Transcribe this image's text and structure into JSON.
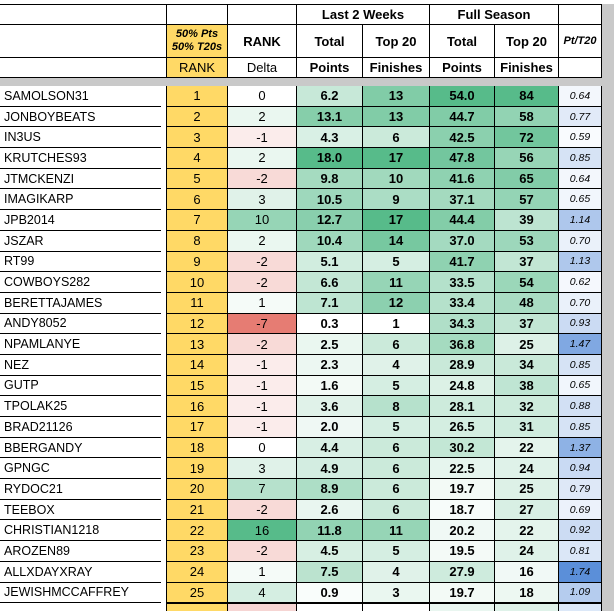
{
  "sheet": {
    "header": {
      "last2weeks": "Last 2 Weeks",
      "fullseason": "Full Season",
      "rank_formula_line1": "50% Pts",
      "rank_formula_line2": "50% T20s",
      "rank_label": "RANK",
      "delta_label_line1": "RANK",
      "delta_label_line2": "Delta",
      "total": "Total",
      "top20": "Top 20",
      "points": "Points",
      "finishes": "Finishes",
      "pt_per_t20": "Pt/T20"
    },
    "rows": [
      {
        "name": "SAMOLSON31",
        "rank": "1",
        "delta": "0",
        "l2w_points": "6.2",
        "l2w_top20": "13",
        "fs_points": "54.0",
        "fs_top20": "84",
        "pt_t20": "0.64"
      },
      {
        "name": "JONBOYBEATS",
        "rank": "2",
        "delta": "2",
        "l2w_points": "13.1",
        "l2w_top20": "13",
        "fs_points": "44.7",
        "fs_top20": "58",
        "pt_t20": "0.77"
      },
      {
        "name": "IN3US",
        "rank": "3",
        "delta": "-1",
        "l2w_points": "4.3",
        "l2w_top20": "6",
        "fs_points": "42.5",
        "fs_top20": "72",
        "pt_t20": "0.59"
      },
      {
        "name": "KRUTCHES93",
        "rank": "4",
        "delta": "2",
        "l2w_points": "18.0",
        "l2w_top20": "17",
        "fs_points": "47.8",
        "fs_top20": "56",
        "pt_t20": "0.85"
      },
      {
        "name": "JTMCKENZI",
        "rank": "5",
        "delta": "-2",
        "l2w_points": "9.8",
        "l2w_top20": "10",
        "fs_points": "41.6",
        "fs_top20": "65",
        "pt_t20": "0.64"
      },
      {
        "name": "IMAGIKARP",
        "rank": "6",
        "delta": "3",
        "l2w_points": "10.5",
        "l2w_top20": "9",
        "fs_points": "37.1",
        "fs_top20": "57",
        "pt_t20": "0.65"
      },
      {
        "name": "JPB2014",
        "rank": "7",
        "delta": "10",
        "l2w_points": "12.7",
        "l2w_top20": "17",
        "fs_points": "44.4",
        "fs_top20": "39",
        "pt_t20": "1.14"
      },
      {
        "name": "JSZAR",
        "rank": "8",
        "delta": "2",
        "l2w_points": "10.4",
        "l2w_top20": "14",
        "fs_points": "37.0",
        "fs_top20": "53",
        "pt_t20": "0.70"
      },
      {
        "name": "RT99",
        "rank": "9",
        "delta": "-2",
        "l2w_points": "5.1",
        "l2w_top20": "5",
        "fs_points": "41.7",
        "fs_top20": "37",
        "pt_t20": "1.13"
      },
      {
        "name": "COWBOYS282",
        "rank": "10",
        "delta": "-2",
        "l2w_points": "6.6",
        "l2w_top20": "11",
        "fs_points": "33.5",
        "fs_top20": "54",
        "pt_t20": "0.62"
      },
      {
        "name": "BERETTAJAMES",
        "rank": "11",
        "delta": "1",
        "l2w_points": "7.1",
        "l2w_top20": "12",
        "fs_points": "33.4",
        "fs_top20": "48",
        "pt_t20": "0.70"
      },
      {
        "name": "ANDY8052",
        "rank": "12",
        "delta": "-7",
        "l2w_points": "0.3",
        "l2w_top20": "1",
        "fs_points": "34.3",
        "fs_top20": "37",
        "pt_t20": "0.93"
      },
      {
        "name": "NPAMLANYE",
        "rank": "13",
        "delta": "-2",
        "l2w_points": "2.5",
        "l2w_top20": "6",
        "fs_points": "36.8",
        "fs_top20": "25",
        "pt_t20": "1.47"
      },
      {
        "name": "NEZ",
        "rank": "14",
        "delta": "-1",
        "l2w_points": "2.3",
        "l2w_top20": "4",
        "fs_points": "28.9",
        "fs_top20": "34",
        "pt_t20": "0.85"
      },
      {
        "name": "GUTP",
        "rank": "15",
        "delta": "-1",
        "l2w_points": "1.6",
        "l2w_top20": "5",
        "fs_points": "24.8",
        "fs_top20": "38",
        "pt_t20": "0.65"
      },
      {
        "name": "TPOLAK25",
        "rank": "16",
        "delta": "-1",
        "l2w_points": "3.6",
        "l2w_top20": "8",
        "fs_points": "28.1",
        "fs_top20": "32",
        "pt_t20": "0.88"
      },
      {
        "name": "BRAD21126",
        "rank": "17",
        "delta": "-1",
        "l2w_points": "2.0",
        "l2w_top20": "5",
        "fs_points": "26.5",
        "fs_top20": "31",
        "pt_t20": "0.85"
      },
      {
        "name": "BBERGANDY",
        "rank": "18",
        "delta": "0",
        "l2w_points": "4.4",
        "l2w_top20": "6",
        "fs_points": "30.2",
        "fs_top20": "22",
        "pt_t20": "1.37"
      },
      {
        "name": "GPNGC",
        "rank": "19",
        "delta": "3",
        "l2w_points": "4.9",
        "l2w_top20": "6",
        "fs_points": "22.5",
        "fs_top20": "24",
        "pt_t20": "0.94"
      },
      {
        "name": "RYDOC21",
        "rank": "20",
        "delta": "7",
        "l2w_points": "8.9",
        "l2w_top20": "6",
        "fs_points": "19.7",
        "fs_top20": "25",
        "pt_t20": "0.79"
      },
      {
        "name": "TEEBOX",
        "rank": "21",
        "delta": "-2",
        "l2w_points": "2.6",
        "l2w_top20": "6",
        "fs_points": "18.7",
        "fs_top20": "27",
        "pt_t20": "0.69"
      },
      {
        "name": "CHRISTIAN1218",
        "rank": "22",
        "delta": "16",
        "l2w_points": "11.8",
        "l2w_top20": "11",
        "fs_points": "20.2",
        "fs_top20": "22",
        "pt_t20": "0.92"
      },
      {
        "name": "AROZEN89",
        "rank": "23",
        "delta": "-2",
        "l2w_points": "4.5",
        "l2w_top20": "5",
        "fs_points": "19.5",
        "fs_top20": "24",
        "pt_t20": "0.81"
      },
      {
        "name": "ALLXDAYXRAY",
        "rank": "24",
        "delta": "1",
        "l2w_points": "7.5",
        "l2w_top20": "4",
        "fs_points": "27.9",
        "fs_top20": "16",
        "pt_t20": "1.74"
      },
      {
        "name": "JEWISHMCCAFFREY",
        "rank": "25",
        "delta": "4",
        "l2w_points": "0.9",
        "l2w_top20": "3",
        "fs_points": "19.7",
        "fs_top20": "18",
        "pt_t20": "1.09"
      }
    ]
  },
  "formatting": {
    "rank_bg": "#FFD966",
    "freeze_divider_color": "#C9C9C9",
    "gradients": {
      "delta": {
        "min": -7,
        "mid": 0,
        "max": 16,
        "min_color": "#E67C73",
        "mid_color": "#FFFFFF",
        "max_color": "#57BB8A"
      },
      "l2w_points": {
        "min": 0.3,
        "max": 18,
        "min_color": "#FFFFFF",
        "max_color": "#57BB8A"
      },
      "l2w_top20": {
        "min": 1,
        "max": 17,
        "min_color": "#FFFFFF",
        "max_color": "#57BB8A"
      },
      "fs_points": {
        "min": 17,
        "max": 54,
        "min_color": "#FFFFFF",
        "max_color": "#57BB8A"
      },
      "fs_top20": {
        "min": 10,
        "max": 84,
        "min_color": "#FFFFFF",
        "max_color": "#57BB8A"
      },
      "pt_t20": {
        "min": 0.55,
        "max": 1.74,
        "min_color": "#FFFFFF",
        "max_color": "#5B8FD9"
      }
    },
    "partial_next_row": {
      "rank": "#FFD966",
      "delta": "#F6D5D3",
      "l2w_points": "#FFFFFF",
      "l2w_top20": "#FFFFFF",
      "fs_points": "#E9F6F0",
      "fs_top20": "#DFF2E9",
      "pt_t20": "#DCE8F8"
    }
  }
}
